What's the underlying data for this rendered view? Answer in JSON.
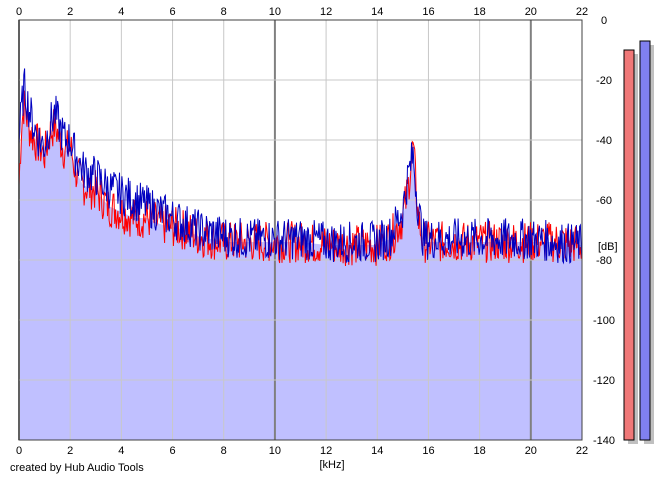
{
  "chart_data": {
    "type": "area",
    "xlabel": "[kHz]",
    "ylabel": "[dB]",
    "xlim": [
      0,
      22
    ],
    "ylim": [
      -140,
      0
    ],
    "x_ticks": [
      "0",
      "2",
      "4",
      "6",
      "8",
      "10",
      "12",
      "14",
      "16",
      "18",
      "20",
      "22"
    ],
    "y_ticks": [
      "0",
      "-20",
      "-40",
      "-60",
      "-80",
      "-100",
      "-120",
      "-140"
    ],
    "grid": true,
    "series": [
      {
        "color": "#ff0000",
        "x": [
          0,
          0.1,
          0.2,
          0.4,
          0.6,
          0.8,
          1.0,
          1.2,
          1.4,
          1.6,
          1.8,
          2.0,
          2.2,
          2.5,
          3.0,
          3.5,
          4.0,
          4.5,
          5.0,
          5.5,
          6.0,
          6.5,
          7.0,
          7.5,
          8.0,
          9.0,
          10.0,
          11.0,
          12.0,
          13.0,
          14.0,
          14.5,
          15.0,
          15.2,
          15.4,
          15.6,
          15.8,
          16.0,
          17.0,
          18.0,
          19.0,
          20.0,
          21.0,
          22.0
        ],
        "values": [
          -55,
          -35,
          -28,
          -36,
          -40,
          -42,
          -45,
          -38,
          -35,
          -40,
          -44,
          -42,
          -50,
          -55,
          -57,
          -62,
          -64,
          -66,
          -66,
          -68,
          -69,
          -70,
          -72,
          -73,
          -74,
          -74,
          -74,
          -74,
          -75,
          -75,
          -75,
          -73,
          -66,
          -56,
          -42,
          -66,
          -74,
          -74,
          -74,
          -74,
          -74,
          -74,
          -74,
          -75
        ]
      },
      {
        "color": "#0000c0",
        "x": [
          0,
          0.1,
          0.2,
          0.4,
          0.6,
          0.8,
          1.0,
          1.2,
          1.4,
          1.6,
          1.8,
          2.0,
          2.2,
          2.5,
          3.0,
          3.5,
          4.0,
          4.5,
          5.0,
          5.5,
          6.0,
          6.5,
          7.0,
          7.5,
          8.0,
          9.0,
          10.0,
          11.0,
          12.0,
          13.0,
          14.0,
          14.5,
          15.0,
          15.2,
          15.4,
          15.6,
          15.8,
          16.0,
          17.0,
          18.0,
          19.0,
          20.0,
          21.0,
          22.0
        ],
        "values": [
          -40,
          -30,
          -22,
          -30,
          -36,
          -40,
          -42,
          -35,
          -31,
          -36,
          -40,
          -40,
          -45,
          -50,
          -52,
          -56,
          -58,
          -60,
          -62,
          -64,
          -66,
          -68,
          -70,
          -71,
          -72,
          -73,
          -73,
          -73,
          -74,
          -74,
          -74,
          -72,
          -63,
          -52,
          -45,
          -63,
          -73,
          -73,
          -73,
          -73,
          -73,
          -73,
          -74,
          -75
        ]
      }
    ],
    "level_meters": [
      {
        "color": "#f07878",
        "value_db": -10
      },
      {
        "color": "#8080f0",
        "value_db": -7
      }
    ]
  },
  "credit_text": "created by Hub Audio Tools",
  "colors": {
    "fill": "#c0c0ff",
    "grid": "#c8c8c8",
    "grid_major": "#808080"
  }
}
